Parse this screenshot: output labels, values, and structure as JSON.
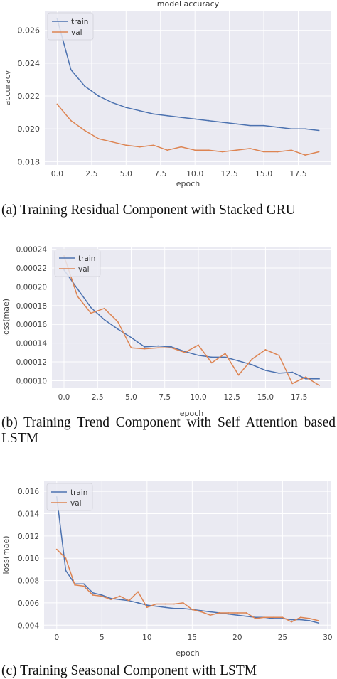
{
  "charts": [
    {
      "caption": "(a) Training Residual Component with Stacked GRU",
      "chart_data": {
        "type": "line",
        "title": "model accuracy",
        "xlabel": "epoch",
        "ylabel": "accuracy",
        "xlim": [
          -0.9,
          19.9
        ],
        "ylim": [
          0.0178,
          0.0272
        ],
        "xticks": [
          0.0,
          2.5,
          5.0,
          7.5,
          10.0,
          12.5,
          15.0,
          17.5
        ],
        "xtick_labels": [
          "0.0",
          "2.5",
          "5.0",
          "7.5",
          "10.0",
          "12.5",
          "15.0",
          "17.5"
        ],
        "yticks": [
          0.018,
          0.02,
          0.022,
          0.024,
          0.026
        ],
        "ytick_labels": [
          "0.018",
          "0.020",
          "0.022",
          "0.024",
          "0.026"
        ],
        "grid": true,
        "legend_position": "top-left",
        "series": [
          {
            "name": "train",
            "color": "#4c72b0",
            "x": [
              0,
              1,
              2,
              3,
              4,
              5,
              6,
              7,
              8,
              9,
              10,
              11,
              12,
              13,
              14,
              15,
              16,
              17,
              18,
              19
            ],
            "y": [
              0.0267,
              0.0236,
              0.0226,
              0.022,
              0.0216,
              0.0213,
              0.0211,
              0.0209,
              0.0208,
              0.0207,
              0.0206,
              0.0205,
              0.0204,
              0.0203,
              0.0202,
              0.0202,
              0.0201,
              0.02,
              0.02,
              0.0199
            ]
          },
          {
            "name": "val",
            "color": "#dd8452",
            "x": [
              0,
              1,
              2,
              3,
              4,
              5,
              6,
              7,
              8,
              9,
              10,
              11,
              12,
              13,
              14,
              15,
              16,
              17,
              18,
              19
            ],
            "y": [
              0.0215,
              0.0205,
              0.0199,
              0.0194,
              0.0192,
              0.019,
              0.0189,
              0.019,
              0.0187,
              0.0189,
              0.0187,
              0.0187,
              0.0186,
              0.0187,
              0.0188,
              0.0186,
              0.0186,
              0.0187,
              0.0184,
              0.0186
            ]
          }
        ]
      }
    },
    {
      "caption": "(b) Training Trend Component with Self Attention based LSTM",
      "chart_data": {
        "type": "line",
        "title": "",
        "xlabel": "epoch",
        "ylabel": "loss(mae)",
        "xlim": [
          -0.9,
          19.9
        ],
        "ylim": [
          9.2e-05,
          0.000242
        ],
        "xticks": [
          0.0,
          2.5,
          5.0,
          7.5,
          10.0,
          12.5,
          15.0,
          17.5
        ],
        "xtick_labels": [
          "0.0",
          "2.5",
          "5.0",
          "7.5",
          "10.0",
          "12.5",
          "15.0",
          "17.5"
        ],
        "yticks": [
          0.0001,
          0.00012,
          0.00014,
          0.00016,
          0.00018,
          0.0002,
          0.00022,
          0.00024
        ],
        "ytick_labels": [
          "0.00010",
          "0.00012",
          "0.00014",
          "0.00016",
          "0.00018",
          "0.00020",
          "0.00022",
          "0.00024"
        ],
        "grid": true,
        "legend_position": "top-left",
        "series": [
          {
            "name": "train",
            "color": "#4c72b0",
            "x": [
              0,
              1,
              2,
              3,
              4,
              5,
              6,
              7,
              8,
              9,
              10,
              11,
              12,
              13,
              14,
              15,
              16,
              17,
              18,
              19
            ],
            "y": [
              0.000218,
              0.000198,
              0.000178,
              0.000165,
              0.000155,
              0.000146,
              0.000136,
              0.000137,
              0.000136,
              0.000131,
              0.000127,
              0.000125,
              0.000125,
              0.000121,
              0.000117,
              0.000111,
              0.000108,
              0.000109,
              0.000102,
              0.000102
            ]
          },
          {
            "name": "val",
            "color": "#dd8452",
            "x": [
              0,
              1,
              2,
              3,
              4,
              5,
              6,
              7,
              8,
              9,
              10,
              11,
              12,
              13,
              14,
              15,
              16,
              17,
              18,
              19
            ],
            "y": [
              0.000233,
              0.00019,
              0.000172,
              0.000177,
              0.000163,
              0.000135,
              0.000134,
              0.000135,
              0.000135,
              0.00013,
              0.000138,
              0.000119,
              0.000129,
              0.000106,
              0.000123,
              0.000133,
              0.000127,
              9.7e-05,
              0.000104,
              9.5e-05
            ]
          }
        ]
      }
    },
    {
      "caption": "(c) Training Seasonal Component with LSTM",
      "chart_data": {
        "type": "line",
        "title": "",
        "xlabel": "epoch",
        "ylabel": "loss(mae)",
        "xlim": [
          -1.4,
          30.4
        ],
        "ylim": [
          0.0037,
          0.0169
        ],
        "xticks": [
          0,
          5,
          10,
          15,
          20,
          25,
          30
        ],
        "xtick_labels": [
          "0",
          "5",
          "10",
          "15",
          "20",
          "25",
          "30"
        ],
        "yticks": [
          0.004,
          0.006,
          0.008,
          0.01,
          0.012,
          0.014,
          0.016
        ],
        "ytick_labels": [
          "0.004",
          "0.006",
          "0.008",
          "0.010",
          "0.012",
          "0.014",
          "0.016"
        ],
        "grid": true,
        "legend_position": "top-left",
        "series": [
          {
            "name": "train",
            "color": "#4c72b0",
            "x": [
              0,
              1,
              2,
              3,
              4,
              5,
              6,
              7,
              8,
              9,
              10,
              11,
              12,
              13,
              14,
              15,
              16,
              17,
              18,
              19,
              20,
              21,
              22,
              23,
              24,
              25,
              26,
              27,
              28,
              29
            ],
            "y": [
              0.0155,
              0.0089,
              0.0077,
              0.0077,
              0.0069,
              0.0067,
              0.0064,
              0.0063,
              0.0062,
              0.006,
              0.0058,
              0.0057,
              0.0056,
              0.0055,
              0.0055,
              0.0054,
              0.0053,
              0.0052,
              0.0051,
              0.005,
              0.0049,
              0.0048,
              0.0047,
              0.0047,
              0.0046,
              0.0046,
              0.0045,
              0.0045,
              0.0044,
              0.0042
            ]
          },
          {
            "name": "val",
            "color": "#dd8452",
            "x": [
              0,
              1,
              2,
              3,
              4,
              5,
              6,
              7,
              8,
              9,
              10,
              11,
              12,
              13,
              14,
              15,
              16,
              17,
              18,
              19,
              20,
              21,
              22,
              23,
              24,
              25,
              26,
              27,
              28,
              29
            ],
            "y": [
              0.0108,
              0.01,
              0.0076,
              0.0075,
              0.0067,
              0.0066,
              0.0063,
              0.0066,
              0.0062,
              0.007,
              0.0056,
              0.0059,
              0.0059,
              0.0059,
              0.006,
              0.0054,
              0.0052,
              0.0049,
              0.0051,
              0.0051,
              0.0051,
              0.0051,
              0.0046,
              0.0047,
              0.0047,
              0.0047,
              0.0043,
              0.0047,
              0.0046,
              0.0044
            ]
          }
        ]
      }
    }
  ]
}
